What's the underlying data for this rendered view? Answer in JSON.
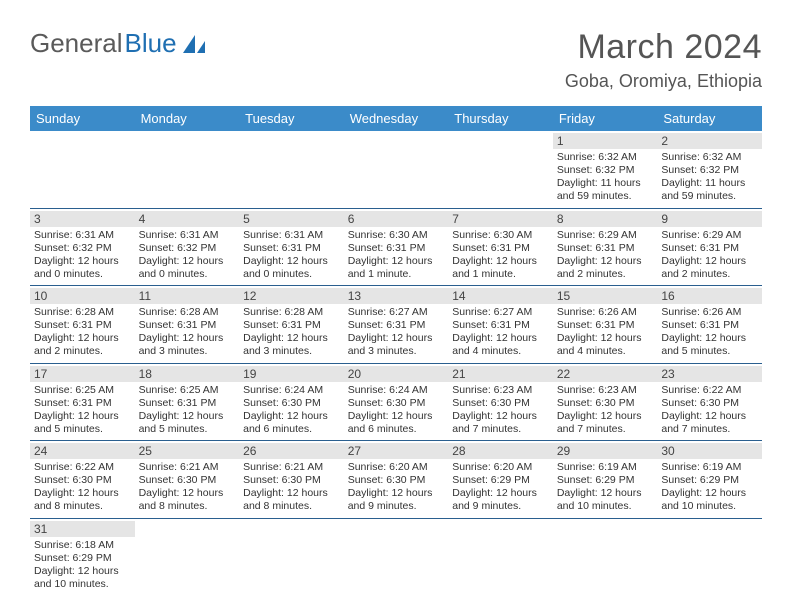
{
  "brand": {
    "word1": "General",
    "word2": "Blue"
  },
  "title": "March 2024",
  "location": "Goba, Oromiya, Ethiopia",
  "weekdays": [
    "Sunday",
    "Monday",
    "Tuesday",
    "Wednesday",
    "Thursday",
    "Friday",
    "Saturday"
  ],
  "colors": {
    "header_bg": "#3b8bc9",
    "row_border": "#2a5f8f",
    "daynum_bg": "#e5e5e5",
    "brand_blue": "#1f6fb2"
  },
  "first_weekday_index": 5,
  "days": [
    {
      "n": 1,
      "sunrise": "6:32 AM",
      "sunset": "6:32 PM",
      "daylight": "11 hours and 59 minutes."
    },
    {
      "n": 2,
      "sunrise": "6:32 AM",
      "sunset": "6:32 PM",
      "daylight": "11 hours and 59 minutes."
    },
    {
      "n": 3,
      "sunrise": "6:31 AM",
      "sunset": "6:32 PM",
      "daylight": "12 hours and 0 minutes."
    },
    {
      "n": 4,
      "sunrise": "6:31 AM",
      "sunset": "6:32 PM",
      "daylight": "12 hours and 0 minutes."
    },
    {
      "n": 5,
      "sunrise": "6:31 AM",
      "sunset": "6:31 PM",
      "daylight": "12 hours and 0 minutes."
    },
    {
      "n": 6,
      "sunrise": "6:30 AM",
      "sunset": "6:31 PM",
      "daylight": "12 hours and 1 minute."
    },
    {
      "n": 7,
      "sunrise": "6:30 AM",
      "sunset": "6:31 PM",
      "daylight": "12 hours and 1 minute."
    },
    {
      "n": 8,
      "sunrise": "6:29 AM",
      "sunset": "6:31 PM",
      "daylight": "12 hours and 2 minutes."
    },
    {
      "n": 9,
      "sunrise": "6:29 AM",
      "sunset": "6:31 PM",
      "daylight": "12 hours and 2 minutes."
    },
    {
      "n": 10,
      "sunrise": "6:28 AM",
      "sunset": "6:31 PM",
      "daylight": "12 hours and 2 minutes."
    },
    {
      "n": 11,
      "sunrise": "6:28 AM",
      "sunset": "6:31 PM",
      "daylight": "12 hours and 3 minutes."
    },
    {
      "n": 12,
      "sunrise": "6:28 AM",
      "sunset": "6:31 PM",
      "daylight": "12 hours and 3 minutes."
    },
    {
      "n": 13,
      "sunrise": "6:27 AM",
      "sunset": "6:31 PM",
      "daylight": "12 hours and 3 minutes."
    },
    {
      "n": 14,
      "sunrise": "6:27 AM",
      "sunset": "6:31 PM",
      "daylight": "12 hours and 4 minutes."
    },
    {
      "n": 15,
      "sunrise": "6:26 AM",
      "sunset": "6:31 PM",
      "daylight": "12 hours and 4 minutes."
    },
    {
      "n": 16,
      "sunrise": "6:26 AM",
      "sunset": "6:31 PM",
      "daylight": "12 hours and 5 minutes."
    },
    {
      "n": 17,
      "sunrise": "6:25 AM",
      "sunset": "6:31 PM",
      "daylight": "12 hours and 5 minutes."
    },
    {
      "n": 18,
      "sunrise": "6:25 AM",
      "sunset": "6:31 PM",
      "daylight": "12 hours and 5 minutes."
    },
    {
      "n": 19,
      "sunrise": "6:24 AM",
      "sunset": "6:30 PM",
      "daylight": "12 hours and 6 minutes."
    },
    {
      "n": 20,
      "sunrise": "6:24 AM",
      "sunset": "6:30 PM",
      "daylight": "12 hours and 6 minutes."
    },
    {
      "n": 21,
      "sunrise": "6:23 AM",
      "sunset": "6:30 PM",
      "daylight": "12 hours and 7 minutes."
    },
    {
      "n": 22,
      "sunrise": "6:23 AM",
      "sunset": "6:30 PM",
      "daylight": "12 hours and 7 minutes."
    },
    {
      "n": 23,
      "sunrise": "6:22 AM",
      "sunset": "6:30 PM",
      "daylight": "12 hours and 7 minutes."
    },
    {
      "n": 24,
      "sunrise": "6:22 AM",
      "sunset": "6:30 PM",
      "daylight": "12 hours and 8 minutes."
    },
    {
      "n": 25,
      "sunrise": "6:21 AM",
      "sunset": "6:30 PM",
      "daylight": "12 hours and 8 minutes."
    },
    {
      "n": 26,
      "sunrise": "6:21 AM",
      "sunset": "6:30 PM",
      "daylight": "12 hours and 8 minutes."
    },
    {
      "n": 27,
      "sunrise": "6:20 AM",
      "sunset": "6:30 PM",
      "daylight": "12 hours and 9 minutes."
    },
    {
      "n": 28,
      "sunrise": "6:20 AM",
      "sunset": "6:29 PM",
      "daylight": "12 hours and 9 minutes."
    },
    {
      "n": 29,
      "sunrise": "6:19 AM",
      "sunset": "6:29 PM",
      "daylight": "12 hours and 10 minutes."
    },
    {
      "n": 30,
      "sunrise": "6:19 AM",
      "sunset": "6:29 PM",
      "daylight": "12 hours and 10 minutes."
    },
    {
      "n": 31,
      "sunrise": "6:18 AM",
      "sunset": "6:29 PM",
      "daylight": "12 hours and 10 minutes."
    }
  ],
  "labels": {
    "sunrise": "Sunrise:",
    "sunset": "Sunset:",
    "daylight": "Daylight:"
  }
}
